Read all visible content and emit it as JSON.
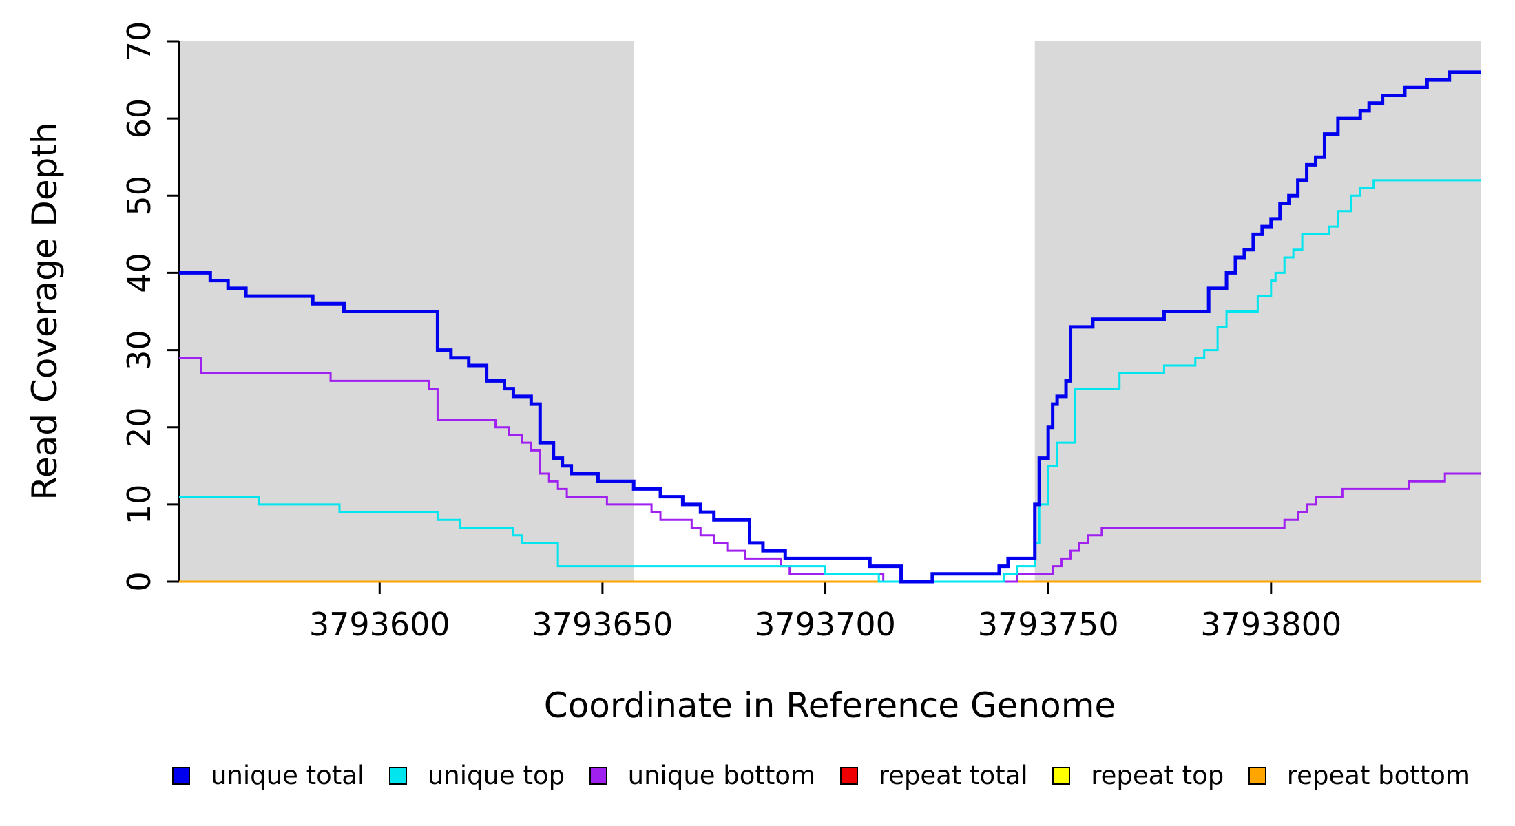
{
  "chart_data": {
    "type": "line",
    "subtype": "step",
    "title": "",
    "xlabel": "Coordinate in Reference Genome",
    "ylabel": "Read Coverage Depth",
    "xlim": [
      3793555,
      3793847
    ],
    "ylim": [
      0,
      70
    ],
    "x_ticks": [
      3793600,
      3793650,
      3793700,
      3793750,
      3793800
    ],
    "y_ticks": [
      0,
      10,
      20,
      30,
      40,
      50,
      60,
      70
    ],
    "grid": false,
    "legend_position": "bottom",
    "shade_color": "#D9D9D9",
    "shaded_regions": [
      [
        3793555,
        3793657
      ],
      [
        3793747,
        3793847
      ]
    ],
    "series": [
      {
        "name": "repeat total",
        "color": "#EE0000",
        "lwd": 3,
        "points": [
          [
            3793555,
            0
          ],
          [
            3793847,
            0
          ]
        ]
      },
      {
        "name": "repeat top",
        "color": "#FFFF00",
        "lwd": 3,
        "points": [
          [
            3793555,
            0
          ],
          [
            3793847,
            0
          ]
        ]
      },
      {
        "name": "repeat bottom",
        "color": "#FFA500",
        "lwd": 3,
        "points": [
          [
            3793555,
            0
          ],
          [
            3793847,
            0
          ]
        ]
      },
      {
        "name": "unique bottom",
        "color": "#A020F0",
        "lwd": 3,
        "points": [
          [
            3793555,
            29
          ],
          [
            3793560,
            27
          ],
          [
            3793589,
            26
          ],
          [
            3793611,
            25
          ],
          [
            3793613,
            21
          ],
          [
            3793626,
            20
          ],
          [
            3793629,
            19
          ],
          [
            3793632,
            18
          ],
          [
            3793634,
            17
          ],
          [
            3793636,
            14
          ],
          [
            3793638,
            13
          ],
          [
            3793640,
            12
          ],
          [
            3793642,
            11
          ],
          [
            3793651,
            10
          ],
          [
            3793661,
            9
          ],
          [
            3793663,
            8
          ],
          [
            3793670,
            7
          ],
          [
            3793672,
            6
          ],
          [
            3793675,
            5
          ],
          [
            3793678,
            4
          ],
          [
            3793682,
            3
          ],
          [
            3793690,
            2
          ],
          [
            3793692,
            1
          ],
          [
            3793713,
            0
          ],
          [
            3793743,
            1
          ],
          [
            3793751,
            2
          ],
          [
            3793753,
            3
          ],
          [
            3793755,
            4
          ],
          [
            3793757,
            5
          ],
          [
            3793759,
            6
          ],
          [
            3793762,
            7
          ],
          [
            3793803,
            8
          ],
          [
            3793806,
            9
          ],
          [
            3793808,
            10
          ],
          [
            3793810,
            11
          ],
          [
            3793816,
            12
          ],
          [
            3793831,
            13
          ],
          [
            3793839,
            14
          ],
          [
            3793847,
            14
          ]
        ]
      },
      {
        "name": "unique top",
        "color": "#00E5EE",
        "lwd": 3,
        "points": [
          [
            3793555,
            11
          ],
          [
            3793573,
            10
          ],
          [
            3793591,
            9
          ],
          [
            3793613,
            8
          ],
          [
            3793618,
            7
          ],
          [
            3793630,
            6
          ],
          [
            3793632,
            5
          ],
          [
            3793640,
            2
          ],
          [
            3793700,
            1
          ],
          [
            3793712,
            0
          ],
          [
            3793740,
            1
          ],
          [
            3793743,
            2
          ],
          [
            3793747,
            5
          ],
          [
            3793748,
            10
          ],
          [
            3793750,
            15
          ],
          [
            3793752,
            18
          ],
          [
            3793756,
            25
          ],
          [
            3793766,
            27
          ],
          [
            3793776,
            28
          ],
          [
            3793783,
            29
          ],
          [
            3793785,
            30
          ],
          [
            3793788,
            33
          ],
          [
            3793790,
            35
          ],
          [
            3793797,
            37
          ],
          [
            3793800,
            39
          ],
          [
            3793801,
            40
          ],
          [
            3793803,
            42
          ],
          [
            3793805,
            43
          ],
          [
            3793807,
            45
          ],
          [
            3793813,
            46
          ],
          [
            3793815,
            48
          ],
          [
            3793818,
            50
          ],
          [
            3793820,
            51
          ],
          [
            3793823,
            52
          ],
          [
            3793847,
            52
          ]
        ]
      },
      {
        "name": "unique total",
        "color": "#0000EE",
        "lwd": 5,
        "points": [
          [
            3793555,
            40
          ],
          [
            3793562,
            39
          ],
          [
            3793566,
            38
          ],
          [
            3793570,
            37
          ],
          [
            3793585,
            36
          ],
          [
            3793592,
            35
          ],
          [
            3793613,
            30
          ],
          [
            3793616,
            29
          ],
          [
            3793620,
            28
          ],
          [
            3793624,
            26
          ],
          [
            3793628,
            25
          ],
          [
            3793630,
            24
          ],
          [
            3793634,
            23
          ],
          [
            3793636,
            18
          ],
          [
            3793639,
            16
          ],
          [
            3793641,
            15
          ],
          [
            3793643,
            14
          ],
          [
            3793649,
            13
          ],
          [
            3793657,
            12
          ],
          [
            3793663,
            11
          ],
          [
            3793668,
            10
          ],
          [
            3793672,
            9
          ],
          [
            3793675,
            8
          ],
          [
            3793683,
            5
          ],
          [
            3793686,
            4
          ],
          [
            3793691,
            3
          ],
          [
            3793710,
            2
          ],
          [
            3793717,
            0
          ],
          [
            3793724,
            1
          ],
          [
            3793739,
            2
          ],
          [
            3793741,
            3
          ],
          [
            3793747,
            10
          ],
          [
            3793748,
            16
          ],
          [
            3793750,
            20
          ],
          [
            3793751,
            23
          ],
          [
            3793752,
            24
          ],
          [
            3793754,
            26
          ],
          [
            3793755,
            33
          ],
          [
            3793760,
            34
          ],
          [
            3793776,
            35
          ],
          [
            3793786,
            38
          ],
          [
            3793790,
            40
          ],
          [
            3793792,
            42
          ],
          [
            3793794,
            43
          ],
          [
            3793796,
            45
          ],
          [
            3793798,
            46
          ],
          [
            3793800,
            47
          ],
          [
            3793802,
            49
          ],
          [
            3793804,
            50
          ],
          [
            3793806,
            52
          ],
          [
            3793808,
            54
          ],
          [
            3793810,
            55
          ],
          [
            3793812,
            58
          ],
          [
            3793815,
            60
          ],
          [
            3793820,
            61
          ],
          [
            3793822,
            62
          ],
          [
            3793825,
            63
          ],
          [
            3793830,
            64
          ],
          [
            3793835,
            65
          ],
          [
            3793840,
            66
          ],
          [
            3793847,
            66
          ]
        ]
      }
    ],
    "legend": [
      {
        "label": "unique total",
        "color": "#0000EE"
      },
      {
        "label": "unique top",
        "color": "#00E5EE"
      },
      {
        "label": "unique bottom",
        "color": "#A020F0"
      },
      {
        "label": "repeat total",
        "color": "#EE0000"
      },
      {
        "label": "repeat top",
        "color": "#FFFF00"
      },
      {
        "label": "repeat bottom",
        "color": "#FFA500"
      }
    ]
  }
}
